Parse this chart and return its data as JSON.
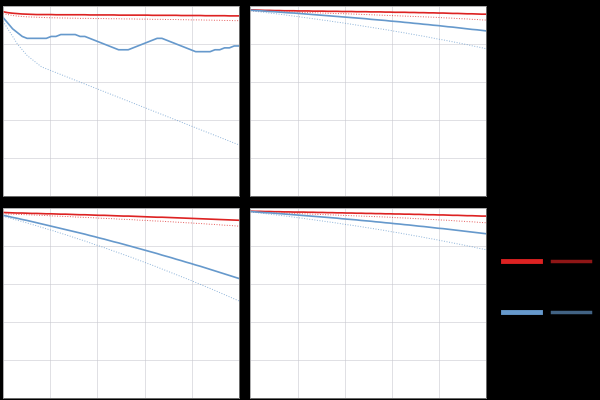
{
  "figure_bg": "#000000",
  "axes_bg": "#ffffff",
  "grid_color": "#c8c8d0",
  "ylim": [
    0,
    1
  ],
  "xlim": [
    0,
    1
  ],
  "line_colors": {
    "red": "#dd2222",
    "blue": "#6699cc"
  },
  "plots": {
    "top_left": {
      "red_solid": [
        0.97,
        0.965,
        0.962,
        0.96,
        0.958,
        0.957,
        0.956,
        0.955,
        0.955,
        0.955,
        0.955,
        0.954,
        0.954,
        0.954,
        0.954,
        0.954,
        0.954,
        0.954,
        0.953,
        0.953,
        0.953,
        0.953,
        0.953,
        0.953,
        0.952,
        0.952,
        0.952,
        0.952,
        0.952,
        0.952,
        0.952,
        0.951,
        0.951,
        0.951,
        0.951,
        0.951,
        0.951,
        0.95,
        0.95,
        0.95,
        0.95,
        0.95,
        0.949,
        0.949,
        0.949,
        0.949,
        0.949,
        0.948,
        0.948,
        0.948
      ],
      "red_dotted": [
        0.96,
        0.955,
        0.95,
        0.947,
        0.945,
        0.943,
        0.942,
        0.941,
        0.94,
        0.939,
        0.938,
        0.938,
        0.937,
        0.937,
        0.936,
        0.936,
        0.935,
        0.935,
        0.935,
        0.934,
        0.934,
        0.934,
        0.933,
        0.933,
        0.933,
        0.932,
        0.932,
        0.932,
        0.931,
        0.931,
        0.931,
        0.93,
        0.93,
        0.93,
        0.929,
        0.929,
        0.929,
        0.928,
        0.928,
        0.927,
        0.927,
        0.927,
        0.926,
        0.926,
        0.925,
        0.925,
        0.924,
        0.924,
        0.923,
        0.923
      ],
      "blue_solid": [
        0.94,
        0.91,
        0.88,
        0.86,
        0.84,
        0.83,
        0.83,
        0.83,
        0.83,
        0.83,
        0.84,
        0.84,
        0.85,
        0.85,
        0.85,
        0.85,
        0.84,
        0.84,
        0.83,
        0.82,
        0.81,
        0.8,
        0.79,
        0.78,
        0.77,
        0.77,
        0.77,
        0.78,
        0.79,
        0.8,
        0.81,
        0.82,
        0.83,
        0.83,
        0.82,
        0.81,
        0.8,
        0.79,
        0.78,
        0.77,
        0.76,
        0.76,
        0.76,
        0.76,
        0.77,
        0.77,
        0.78,
        0.78,
        0.79,
        0.79
      ],
      "blue_dotted": [
        0.92,
        0.88,
        0.84,
        0.8,
        0.77,
        0.74,
        0.72,
        0.7,
        0.68,
        0.67,
        0.66,
        0.65,
        0.64,
        0.63,
        0.62,
        0.61,
        0.6,
        0.59,
        0.58,
        0.57,
        0.56,
        0.55,
        0.54,
        0.53,
        0.52,
        0.51,
        0.5,
        0.49,
        0.48,
        0.47,
        0.46,
        0.45,
        0.44,
        0.43,
        0.42,
        0.41,
        0.4,
        0.39,
        0.38,
        0.37,
        0.36,
        0.35,
        0.34,
        0.33,
        0.32,
        0.31,
        0.3,
        0.29,
        0.28,
        0.27
      ]
    },
    "top_right": {
      "red_solid": [
        0.98,
        0.979,
        0.978,
        0.977,
        0.977,
        0.976,
        0.976,
        0.975,
        0.975,
        0.975,
        0.974,
        0.974,
        0.974,
        0.973,
        0.973,
        0.973,
        0.972,
        0.972,
        0.972,
        0.971,
        0.971,
        0.971,
        0.97,
        0.97,
        0.97,
        0.969,
        0.969,
        0.969,
        0.968,
        0.968,
        0.967,
        0.967,
        0.967,
        0.966,
        0.966,
        0.965,
        0.965,
        0.964,
        0.964,
        0.963,
        0.963,
        0.962,
        0.961,
        0.961,
        0.96,
        0.959,
        0.959,
        0.958,
        0.957,
        0.957
      ],
      "red_dotted": [
        0.975,
        0.974,
        0.973,
        0.972,
        0.972,
        0.971,
        0.97,
        0.969,
        0.969,
        0.968,
        0.967,
        0.966,
        0.966,
        0.965,
        0.964,
        0.963,
        0.962,
        0.961,
        0.96,
        0.96,
        0.959,
        0.958,
        0.957,
        0.956,
        0.955,
        0.954,
        0.953,
        0.952,
        0.951,
        0.95,
        0.949,
        0.948,
        0.947,
        0.946,
        0.945,
        0.944,
        0.943,
        0.942,
        0.941,
        0.94,
        0.938,
        0.937,
        0.936,
        0.934,
        0.933,
        0.932,
        0.93,
        0.929,
        0.927,
        0.926
      ],
      "blue_solid": [
        0.978,
        0.976,
        0.975,
        0.973,
        0.971,
        0.97,
        0.968,
        0.966,
        0.964,
        0.963,
        0.961,
        0.959,
        0.957,
        0.955,
        0.953,
        0.951,
        0.949,
        0.947,
        0.945,
        0.943,
        0.941,
        0.939,
        0.937,
        0.935,
        0.933,
        0.93,
        0.928,
        0.926,
        0.924,
        0.921,
        0.919,
        0.917,
        0.914,
        0.912,
        0.909,
        0.907,
        0.904,
        0.902,
        0.899,
        0.897,
        0.894,
        0.891,
        0.889,
        0.886,
        0.883,
        0.88,
        0.877,
        0.875,
        0.872,
        0.869
      ],
      "blue_dotted": [
        0.975,
        0.972,
        0.969,
        0.966,
        0.963,
        0.96,
        0.957,
        0.954,
        0.95,
        0.947,
        0.944,
        0.94,
        0.937,
        0.933,
        0.93,
        0.926,
        0.923,
        0.919,
        0.915,
        0.912,
        0.908,
        0.904,
        0.9,
        0.896,
        0.892,
        0.888,
        0.884,
        0.88,
        0.876,
        0.872,
        0.867,
        0.863,
        0.859,
        0.854,
        0.85,
        0.845,
        0.841,
        0.836,
        0.831,
        0.826,
        0.822,
        0.817,
        0.812,
        0.807,
        0.802,
        0.797,
        0.791,
        0.786,
        0.781,
        0.775
      ]
    },
    "bottom_left": {
      "red_solid": [
        0.975,
        0.974,
        0.973,
        0.972,
        0.972,
        0.971,
        0.97,
        0.97,
        0.969,
        0.968,
        0.968,
        0.967,
        0.966,
        0.966,
        0.965,
        0.964,
        0.963,
        0.963,
        0.962,
        0.961,
        0.96,
        0.96,
        0.959,
        0.958,
        0.957,
        0.956,
        0.956,
        0.955,
        0.954,
        0.953,
        0.952,
        0.951,
        0.95,
        0.95,
        0.949,
        0.948,
        0.947,
        0.946,
        0.945,
        0.944,
        0.943,
        0.942,
        0.941,
        0.94,
        0.939,
        0.938,
        0.937,
        0.936,
        0.935,
        0.934
      ],
      "red_dotted": [
        0.968,
        0.967,
        0.966,
        0.965,
        0.964,
        0.963,
        0.962,
        0.961,
        0.96,
        0.959,
        0.957,
        0.956,
        0.955,
        0.954,
        0.953,
        0.951,
        0.95,
        0.949,
        0.948,
        0.947,
        0.945,
        0.944,
        0.943,
        0.942,
        0.94,
        0.939,
        0.938,
        0.937,
        0.935,
        0.934,
        0.933,
        0.931,
        0.93,
        0.929,
        0.927,
        0.926,
        0.924,
        0.923,
        0.921,
        0.92,
        0.918,
        0.917,
        0.915,
        0.913,
        0.912,
        0.91,
        0.908,
        0.907,
        0.905,
        0.903
      ],
      "blue_solid": [
        0.96,
        0.955,
        0.949,
        0.944,
        0.938,
        0.933,
        0.927,
        0.921,
        0.915,
        0.909,
        0.903,
        0.897,
        0.891,
        0.885,
        0.879,
        0.873,
        0.867,
        0.861,
        0.854,
        0.848,
        0.841,
        0.835,
        0.828,
        0.821,
        0.815,
        0.808,
        0.801,
        0.794,
        0.787,
        0.78,
        0.773,
        0.766,
        0.759,
        0.751,
        0.744,
        0.737,
        0.729,
        0.722,
        0.714,
        0.707,
        0.699,
        0.692,
        0.684,
        0.676,
        0.668,
        0.66,
        0.652,
        0.644,
        0.636,
        0.628
      ],
      "blue_dotted": [
        0.955,
        0.948,
        0.941,
        0.934,
        0.927,
        0.92,
        0.912,
        0.905,
        0.897,
        0.889,
        0.882,
        0.874,
        0.866,
        0.858,
        0.85,
        0.841,
        0.833,
        0.825,
        0.816,
        0.807,
        0.799,
        0.79,
        0.781,
        0.772,
        0.763,
        0.754,
        0.745,
        0.736,
        0.726,
        0.717,
        0.707,
        0.698,
        0.688,
        0.678,
        0.668,
        0.658,
        0.648,
        0.638,
        0.628,
        0.618,
        0.607,
        0.597,
        0.586,
        0.576,
        0.565,
        0.554,
        0.543,
        0.532,
        0.521,
        0.51
      ]
    },
    "bottom_right": {
      "red_solid": [
        0.982,
        0.981,
        0.981,
        0.98,
        0.98,
        0.979,
        0.979,
        0.978,
        0.978,
        0.977,
        0.977,
        0.977,
        0.976,
        0.976,
        0.975,
        0.975,
        0.974,
        0.974,
        0.973,
        0.973,
        0.972,
        0.972,
        0.971,
        0.971,
        0.97,
        0.97,
        0.969,
        0.969,
        0.968,
        0.968,
        0.967,
        0.967,
        0.966,
        0.966,
        0.965,
        0.965,
        0.964,
        0.963,
        0.963,
        0.962,
        0.962,
        0.961,
        0.96,
        0.96,
        0.959,
        0.958,
        0.958,
        0.957,
        0.956,
        0.956
      ],
      "red_dotted": [
        0.978,
        0.977,
        0.976,
        0.975,
        0.974,
        0.973,
        0.972,
        0.972,
        0.971,
        0.97,
        0.969,
        0.968,
        0.967,
        0.966,
        0.965,
        0.964,
        0.963,
        0.962,
        0.961,
        0.96,
        0.959,
        0.958,
        0.957,
        0.956,
        0.955,
        0.954,
        0.953,
        0.952,
        0.951,
        0.95,
        0.948,
        0.947,
        0.946,
        0.945,
        0.943,
        0.942,
        0.941,
        0.939,
        0.938,
        0.936,
        0.935,
        0.934,
        0.932,
        0.93,
        0.929,
        0.927,
        0.926,
        0.924,
        0.922,
        0.921
      ],
      "blue_solid": [
        0.98,
        0.978,
        0.976,
        0.974,
        0.973,
        0.971,
        0.969,
        0.967,
        0.965,
        0.963,
        0.961,
        0.959,
        0.957,
        0.955,
        0.953,
        0.951,
        0.949,
        0.947,
        0.945,
        0.942,
        0.94,
        0.938,
        0.936,
        0.933,
        0.931,
        0.929,
        0.926,
        0.924,
        0.921,
        0.919,
        0.916,
        0.914,
        0.911,
        0.909,
        0.906,
        0.903,
        0.901,
        0.898,
        0.895,
        0.892,
        0.89,
        0.887,
        0.884,
        0.881,
        0.878,
        0.875,
        0.872,
        0.869,
        0.866,
        0.863
      ],
      "blue_dotted": [
        0.978,
        0.975,
        0.972,
        0.969,
        0.966,
        0.963,
        0.96,
        0.957,
        0.954,
        0.95,
        0.947,
        0.944,
        0.94,
        0.937,
        0.933,
        0.93,
        0.926,
        0.923,
        0.919,
        0.915,
        0.911,
        0.908,
        0.904,
        0.9,
        0.896,
        0.892,
        0.888,
        0.884,
        0.88,
        0.875,
        0.871,
        0.867,
        0.862,
        0.858,
        0.853,
        0.849,
        0.844,
        0.839,
        0.835,
        0.83,
        0.825,
        0.82,
        0.815,
        0.81,
        0.805,
        0.8,
        0.795,
        0.789,
        0.784,
        0.779
      ]
    }
  },
  "legend": {
    "red_solid_lw": 3.5,
    "red_dotted_lw": 2.5,
    "blue_solid_lw": 3.5,
    "blue_dotted_lw": 2.5
  }
}
